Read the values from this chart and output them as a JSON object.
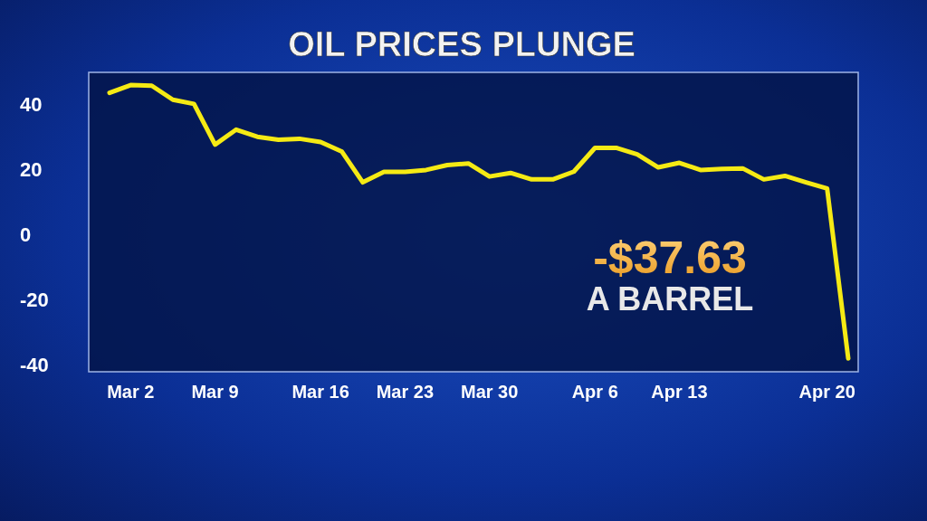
{
  "chart_data": {
    "type": "line",
    "title": "OIL PRICES PLUNGE",
    "categories": [
      null,
      "Mar 2",
      null,
      null,
      null,
      "Mar 9",
      null,
      null,
      null,
      null,
      "Mar 16",
      null,
      null,
      null,
      "Mar 23",
      null,
      null,
      null,
      "Mar 30",
      null,
      null,
      null,
      null,
      "Apr 6",
      null,
      null,
      null,
      "Apr 13",
      null,
      null,
      null,
      null,
      null,
      null,
      "Apr 20",
      null
    ],
    "series": [
      {
        "color": "#f5ea14",
        "values": [
          44,
          46.4,
          46.2,
          41.9,
          40.6,
          28.1,
          32.7,
          30.5,
          29.6,
          29.9,
          28.9,
          26,
          16.5,
          19.7,
          19.7,
          20.3,
          21.8,
          22.3,
          18.3,
          19.4,
          17.4,
          17.4,
          19.8,
          27.1,
          27.1,
          25.1,
          21.1,
          22.5,
          20.3,
          20.6,
          20.8,
          17.4,
          18.5,
          16.5,
          14.6,
          -37.6
        ]
      }
    ],
    "ylim": [
      -41.7,
      50.3
    ],
    "yticks": [
      -40,
      -20,
      0,
      20,
      40
    ],
    "annotations": [
      "-$37.63",
      "A BARREL"
    ],
    "marker": "none",
    "line_style": "solid",
    "grid": false
  }
}
